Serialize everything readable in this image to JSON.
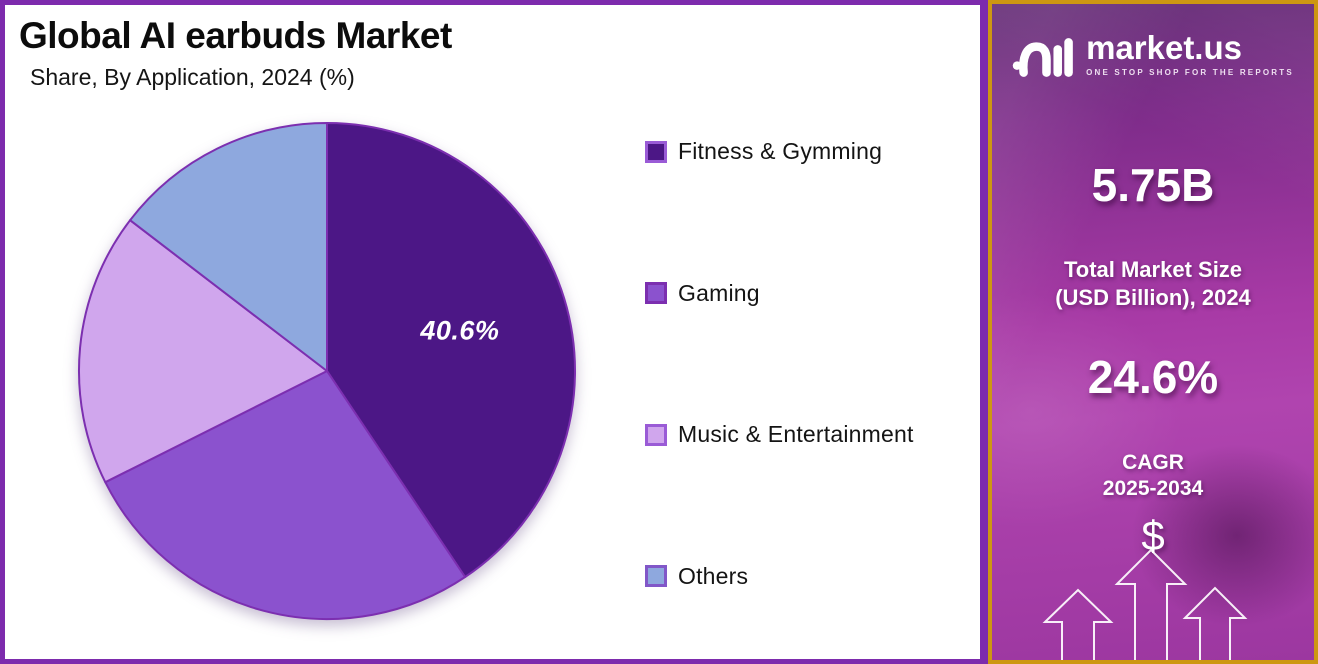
{
  "header": {
    "title": "Global AI earbuds Market",
    "subtitle": "Share, By Application, 2024 (%)"
  },
  "chart_data": {
    "type": "pie",
    "title": "Global AI earbuds Market",
    "subtitle": "Share, By Application, 2024 (%)",
    "unit": "percent",
    "rotation": "clockwise-from-top",
    "legend_position": "right",
    "slice_stroke": "#7C2FB0",
    "label_color": "#FFFFFF",
    "series": [
      {
        "label": "Fitness & Gymming",
        "value": 40.6,
        "data_label": "40.6%",
        "color": "#4C1786",
        "swatch_border": "#9A5BD6"
      },
      {
        "label": "Gaming",
        "value": 27.0,
        "color": "#8B52CE",
        "swatch_border": "#7C2FB0"
      },
      {
        "label": "Music & Entertainment",
        "value": 17.8,
        "color": "#D0A6ED",
        "swatch_border": "#9A5BD6"
      },
      {
        "label": "Others",
        "value": 14.6,
        "color": "#8EA8DE",
        "swatch_border": "#8157C8"
      }
    ]
  },
  "panel": {
    "brand": "market.us",
    "tagline": "ONE STOP SHOP FOR THE REPORTS",
    "market_size_value": "5.75B",
    "market_size_label_line1": "Total Market Size",
    "market_size_label_line2": "(USD Billion), 2024",
    "cagr_value": "24.6%",
    "cagr_label_line1": "CAGR",
    "cagr_label_line2": "2025-2034",
    "dollar_symbol": "$"
  },
  "colors": {
    "outer_border": "#7D2BAD",
    "panel_border": "#CD9712",
    "panel_gradient_top": "#5E2470",
    "panel_gradient_mid": "#A83AA6",
    "panel_gradient_bottom": "#9C37A0",
    "title_text": "#0C0C0C",
    "panel_text": "#FFFFFF"
  }
}
